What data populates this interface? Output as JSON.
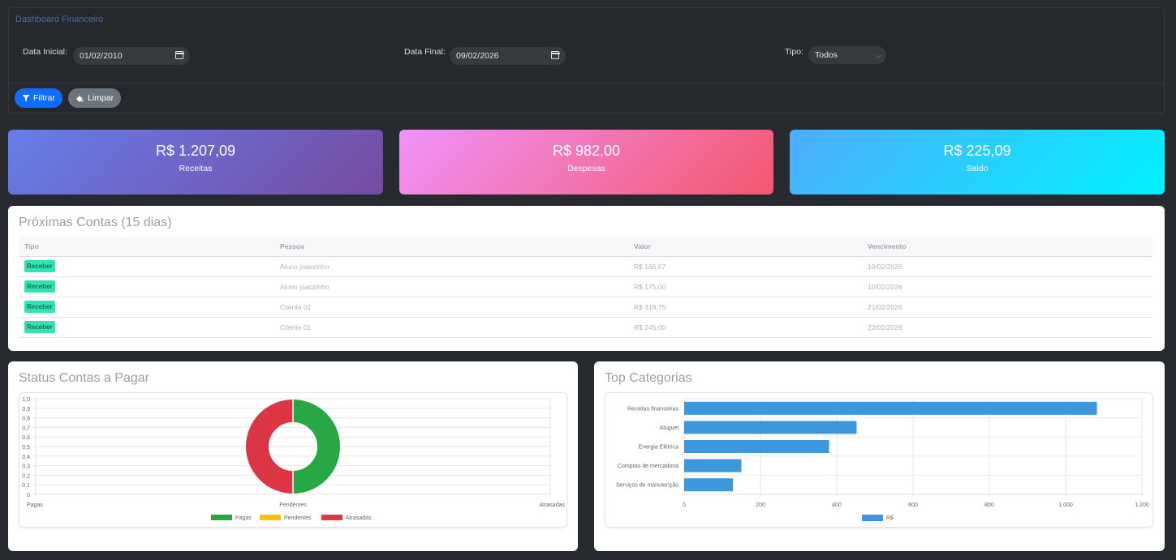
{
  "filter": {
    "title": "Dashboard Financeiro",
    "data_inicial_label": "Data Inicial:",
    "data_inicial_value": "01/02/2010",
    "data_final_label": "Data Final:",
    "data_final_value": "09/02/2026",
    "tipo_label": "Tipo:",
    "tipo_value": "Todos",
    "filtrar_label": "Filtrar",
    "limpar_label": "Limpar"
  },
  "stats": {
    "receitas": {
      "value": "R$ 1.207,09",
      "label": "Receitas"
    },
    "despesas": {
      "value": "R$ 982,00",
      "label": "Despesas"
    },
    "saldo": {
      "value": "R$ 225,09",
      "label": "Saldo"
    }
  },
  "proximas": {
    "title": "Próximas Contas (15 dias)",
    "headers": [
      "Tipo",
      "Pessoa",
      "Valor",
      "Vencimento"
    ],
    "rows": [
      {
        "tipo": "Receber",
        "pessoa": "Aluno joaozinho",
        "valor": "R$ 166,67",
        "vencimento": "10/02/2026"
      },
      {
        "tipo": "Receber",
        "pessoa": "Aluno joaozinho",
        "valor": "R$ 175,00",
        "vencimento": "10/02/2026"
      },
      {
        "tipo": "Receber",
        "pessoa": "Cliente 01",
        "valor": "R$ 318,75",
        "vencimento": "21/02/2026"
      },
      {
        "tipo": "Receber",
        "pessoa": "Cliente 01",
        "valor": "R$ 245,00",
        "vencimento": "22/02/2026"
      }
    ]
  },
  "status_panel": {
    "title": "Status Contas a Pagar"
  },
  "categorias_panel": {
    "title": "Top Categorias"
  },
  "chart_data": [
    {
      "type": "pie",
      "categories": [
        "Pagas",
        "Pendentes",
        "Atrasadas"
      ],
      "values": [
        1,
        0,
        1
      ],
      "colors": [
        "#28a745",
        "#ffc107",
        "#dc3545"
      ],
      "y_ticks": [
        "1,0",
        "0,9",
        "0,8",
        "0,7",
        "0,6",
        "0,5",
        "0,4",
        "0,3",
        "0,2",
        "0,1",
        "0"
      ],
      "x_ticks": [
        "Pagas",
        "Pendentes",
        "Atrasadas"
      ],
      "legend": [
        "Pagas",
        "Pendentes",
        "Atrasadas"
      ],
      "legend_position": "bottom",
      "grid": true
    },
    {
      "type": "bar",
      "orientation": "horizontal",
      "categories": [
        "Receitas financeiras",
        "Aluguel",
        "Energia Elétrica",
        "Compras de mercadoria",
        "Serviços de manutenção"
      ],
      "values": [
        1082,
        452,
        380,
        150,
        128
      ],
      "x_ticks": [
        "0",
        "200",
        "400",
        "600",
        "800",
        "1.000",
        "1.200"
      ],
      "xlim": [
        0,
        1200
      ],
      "series_name": "R$",
      "color": "#3c97dc",
      "legend_position": "bottom",
      "grid": true
    }
  ]
}
